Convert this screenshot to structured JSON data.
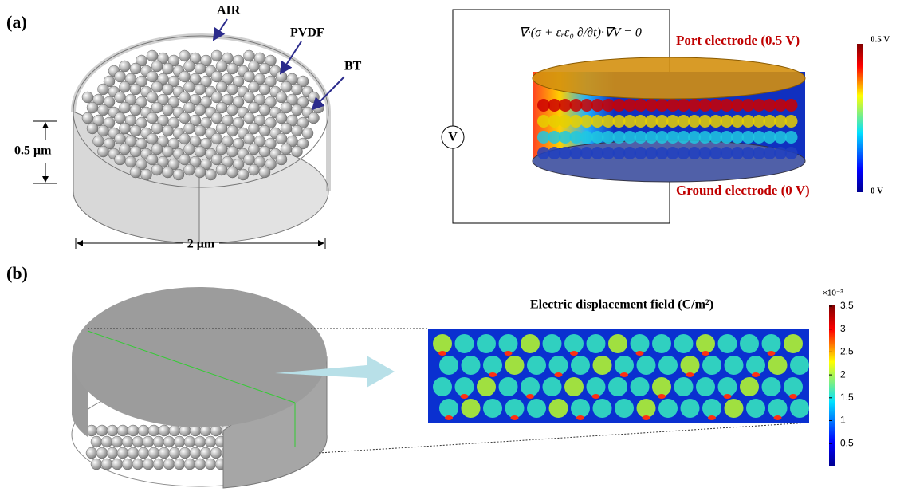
{
  "panel_a": {
    "label": "(a)",
    "materials": {
      "air": "AIR",
      "pvdf": "PVDF",
      "bt": "BT"
    },
    "height_scale": "0.5 μm",
    "width_scale": "2 μm",
    "equation": "∇·(σ + εᵣε₀ ∂/∂t)·∇V = 0",
    "source": "V",
    "port_electrode": "Port electrode (0.5 V)",
    "ground_electrode": "Ground electrode (0 V)",
    "colorbar": {
      "top": "0.5 V",
      "bottom": "0 V"
    }
  },
  "panel_b": {
    "label": "(b)",
    "field_title": "Electric displacement field (C/m²)",
    "colorbar": {
      "exponent": "×10⁻³",
      "ticks": [
        "3.5",
        "3",
        "2.5",
        "2",
        "1.5",
        "1",
        "0.5"
      ]
    }
  }
}
